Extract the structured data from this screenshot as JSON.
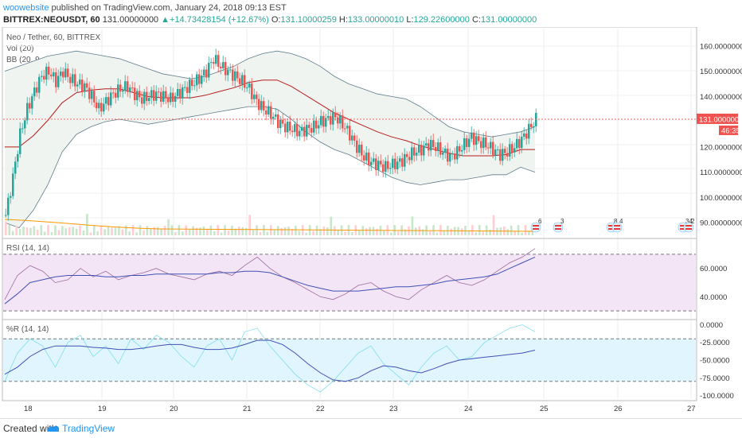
{
  "header": {
    "author": "woowebsite",
    "published_text": " published on TradingView.com, January 24, 2018 09:13 EST",
    "symbol": "BITTREX:NEOUSDT, 60",
    "last": "131.00000000",
    "change": "+14.73428154 (+12.67%)",
    "o_label": "O:",
    "o": "131.10000259",
    "h_label": "H:",
    "h": "133.00000010",
    "l_label": "L:",
    "l": "129.22600000",
    "c_label": "C:",
    "c": "131.00000000",
    "up_color": "#26a69a"
  },
  "main_pane": {
    "title": "Neo / Tether, 60, BITTREX",
    "vol_label": "Vol (20)",
    "bb_label": "BB (20, 9, close, 2)",
    "price_ticks": [
      "160.00000000",
      "150.00000000",
      "140.00000000",
      "130.00000000",
      "120.00000000",
      "110.00000000",
      "100.00000000",
      "90.00000000"
    ],
    "price_tag": "131.00000000",
    "time_tag": "46:35",
    "event_icons": [
      {
        "icon": "flag-icon",
        "count": "6"
      },
      {
        "icon": "flag-icon",
        "count": "3"
      },
      {
        "icon": "flag-icon",
        "count": "8"
      },
      {
        "icon": "flag-icon",
        "count": "4"
      },
      {
        "icon": "flag-icon",
        "count": "34"
      },
      {
        "icon": "flag-icon",
        "count": "2"
      }
    ]
  },
  "rsi_pane": {
    "label": "RSI (14, 14)",
    "ticks": [
      "60.0000",
      "40.0000"
    ]
  },
  "wr_pane": {
    "label": "%R (14, 14)",
    "ticks": [
      "0.0000",
      "-25.0000",
      "-50.0000",
      "-75.0000",
      "-100.0000"
    ]
  },
  "x_axis_labels": [
    "18",
    "19",
    "20",
    "21",
    "22",
    "23",
    "24",
    "25",
    "26",
    "27"
  ],
  "footer": {
    "created_with": "Created with",
    "brand": "TradingView"
  },
  "colors": {
    "up": "#26a69a",
    "down": "#ef5350",
    "bb_basis": "#b71c1c",
    "bb_band": "#607d8b",
    "bb_fill": "#f0f4f0",
    "rsi_line": "#7e57c2",
    "rsi_bg": "#f3e5f5",
    "wr_line": "#80deea",
    "wr_bg": "#e1f5fe",
    "ma_line": "#3f51b5",
    "price_line": "#ef5350",
    "vol_ma": "#ff9800"
  },
  "chart_data": {
    "type": "candlestick",
    "symbol": "BITTREX:NEOUSDT",
    "interval": "60",
    "x_days": [
      "18",
      "19",
      "20",
      "21",
      "22",
      "23",
      "24"
    ],
    "close_path": [
      93,
      108,
      125,
      135,
      142,
      148,
      150,
      146,
      150,
      147,
      145,
      144,
      140,
      135,
      138,
      141,
      143,
      144,
      141,
      139,
      140,
      141,
      140,
      139,
      141,
      143,
      145,
      147,
      150,
      155,
      152,
      150,
      148,
      146,
      143,
      138,
      135,
      133,
      130,
      128,
      127,
      126,
      127,
      128,
      130,
      131,
      132,
      129,
      125,
      120,
      116,
      114,
      113,
      112,
      113,
      114,
      116,
      118,
      119,
      121,
      120,
      118,
      116,
      118,
      121,
      124,
      122,
      121,
      119,
      117,
      118,
      120,
      123,
      127,
      131
    ],
    "bb_upper_path": [
      150,
      152,
      154,
      156,
      157,
      158,
      157,
      156,
      155,
      153,
      151,
      149,
      148,
      147,
      148,
      150,
      152,
      155,
      157,
      158,
      157,
      155,
      152,
      148,
      145,
      143,
      141,
      140,
      139,
      136,
      132,
      128,
      126,
      125,
      124,
      125,
      126,
      128
    ],
    "bb_lower_path": [
      90,
      88,
      95,
      105,
      118,
      125,
      128,
      130,
      131,
      130,
      129,
      130,
      131,
      132,
      133,
      134,
      135,
      136,
      136,
      135,
      131,
      126,
      122,
      119,
      117,
      114,
      111,
      108,
      106,
      105,
      106,
      107,
      107,
      108,
      109,
      109,
      112,
      110
    ],
    "rsi_path": [
      38,
      55,
      62,
      58,
      50,
      52,
      60,
      54,
      58,
      52,
      55,
      57,
      60,
      56,
      54,
      52,
      56,
      58,
      55,
      62,
      68,
      60,
      54,
      50,
      45,
      40,
      38,
      42,
      48,
      50,
      44,
      40,
      38,
      45,
      50,
      55,
      50,
      48,
      52,
      58,
      64,
      68,
      74
    ],
    "rsi_signal_path": [
      35,
      42,
      50,
      52,
      54,
      55,
      55,
      55,
      54,
      54,
      55,
      55,
      56,
      56,
      56,
      56,
      56,
      57,
      57,
      58,
      58,
      57,
      54,
      51,
      48,
      46,
      44,
      44,
      44,
      45,
      46,
      47,
      47,
      48,
      49,
      51,
      52,
      53,
      54,
      56,
      60,
      64,
      68
    ],
    "wr_path": [
      -80,
      -40,
      -20,
      -30,
      -60,
      -25,
      -15,
      -45,
      -30,
      -55,
      -20,
      -35,
      -15,
      -25,
      -45,
      -60,
      -30,
      -20,
      -50,
      -10,
      -5,
      -30,
      -50,
      -70,
      -85,
      -95,
      -80,
      -60,
      -40,
      -30,
      -55,
      -70,
      -85,
      -60,
      -40,
      -30,
      -50,
      -45,
      -25,
      -15,
      -5,
      0,
      -10
    ],
    "wr_signal_path": [
      -70,
      -60,
      -45,
      -35,
      -30,
      -30,
      -30,
      -32,
      -33,
      -35,
      -35,
      -33,
      -30,
      -28,
      -28,
      -32,
      -35,
      -35,
      -33,
      -28,
      -22,
      -22,
      -28,
      -40,
      -55,
      -68,
      -78,
      -80,
      -75,
      -65,
      -58,
      -60,
      -65,
      -68,
      -62,
      -55,
      -50,
      -48,
      -46,
      -44,
      -42,
      -40,
      -36
    ],
    "price_range": [
      85,
      165
    ],
    "rsi_range": [
      25,
      80
    ],
    "wr_range": [
      -105,
      5
    ],
    "current_price": 131
  }
}
